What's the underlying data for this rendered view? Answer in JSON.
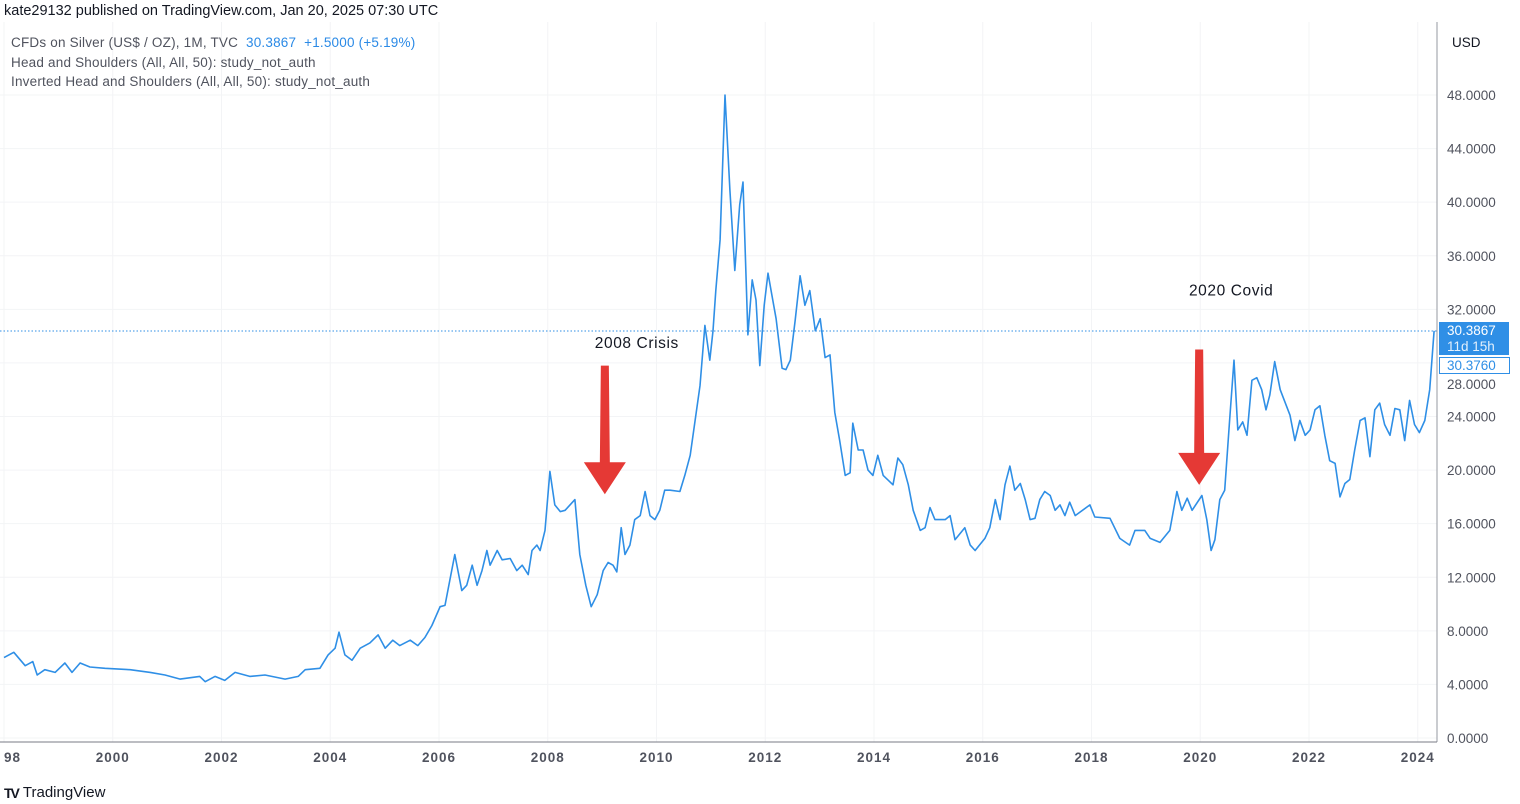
{
  "header": {
    "published": "kate29132 published on TradingView.com, Jan 20, 2025 07:30 UTC"
  },
  "legend": {
    "symbol": "CFDs on Silver (US$ / OZ), 1M, TVC",
    "last": "30.3867",
    "change": "+1.5000 (+5.19%)",
    "study1": "Head and Shoulders (All, All, 50): study_not_auth",
    "study2": "Inverted Head and Shoulders (All, All, 50): study_not_auth"
  },
  "footer": {
    "brand": "TradingView",
    "logo_mark": "TV"
  },
  "chart_data": {
    "type": "line",
    "currency": "USD",
    "line_color": "#2f8fe6",
    "ylim": [
      0,
      48
    ],
    "yticks": [
      "0.0000",
      "4.0000",
      "8.0000",
      "12.0000",
      "16.0000",
      "20.0000",
      "24.0000",
      "28.0000",
      "32.0000",
      "36.0000",
      "40.0000",
      "44.0000",
      "48.0000"
    ],
    "xticks": [
      "98",
      "2000",
      "2002",
      "2004",
      "2006",
      "2008",
      "2010",
      "2012",
      "2014",
      "2016",
      "2018",
      "2020",
      "2022",
      "2024"
    ],
    "grid": true,
    "last_price": {
      "value": 30.3867,
      "label": "30.3867",
      "countdown": "11d 15h",
      "prev_label": "30.3760",
      "color": "#2f8fe6"
    },
    "annotations": [
      {
        "text": "2008 Crisis",
        "year": 2009.05,
        "text_price": 29.5,
        "arrow_from": 27.8,
        "arrow_to": 18.2,
        "color": "#e53935"
      },
      {
        "text": "2020 Covid",
        "year": 2019.98,
        "text_price": 33.4,
        "arrow_from": 29.0,
        "arrow_to": 18.9,
        "color": "#e53935"
      }
    ],
    "series": [
      {
        "points": [
          [
            1998.0,
            6.0
          ],
          [
            1998.18,
            6.4
          ],
          [
            1998.39,
            5.4
          ],
          [
            1998.53,
            5.7
          ],
          [
            1998.61,
            4.7
          ],
          [
            1998.75,
            5.1
          ],
          [
            1998.94,
            4.9
          ],
          [
            1999.12,
            5.6
          ],
          [
            1999.25,
            4.9
          ],
          [
            1999.4,
            5.6
          ],
          [
            1999.58,
            5.3
          ],
          [
            1999.86,
            5.2
          ],
          [
            2000.32,
            5.1
          ],
          [
            2000.69,
            4.9
          ],
          [
            2000.96,
            4.7
          ],
          [
            2001.24,
            4.4
          ],
          [
            2001.6,
            4.6
          ],
          [
            2001.7,
            4.2
          ],
          [
            2001.88,
            4.6
          ],
          [
            2002.06,
            4.3
          ],
          [
            2002.25,
            4.9
          ],
          [
            2002.52,
            4.6
          ],
          [
            2002.8,
            4.7
          ],
          [
            2003.17,
            4.4
          ],
          [
            2003.41,
            4.6
          ],
          [
            2003.54,
            5.1
          ],
          [
            2003.81,
            5.2
          ],
          [
            2003.96,
            6.2
          ],
          [
            2004.09,
            6.7
          ],
          [
            2004.16,
            7.9
          ],
          [
            2004.27,
            6.2
          ],
          [
            2004.4,
            5.8
          ],
          [
            2004.55,
            6.7
          ],
          [
            2004.73,
            7.1
          ],
          [
            2004.88,
            7.7
          ],
          [
            2005.01,
            6.7
          ],
          [
            2005.15,
            7.3
          ],
          [
            2005.28,
            6.9
          ],
          [
            2005.47,
            7.3
          ],
          [
            2005.61,
            6.9
          ],
          [
            2005.74,
            7.5
          ],
          [
            2005.87,
            8.4
          ],
          [
            2006.02,
            9.8
          ],
          [
            2006.11,
            9.9
          ],
          [
            2006.2,
            11.8
          ],
          [
            2006.29,
            13.7
          ],
          [
            2006.42,
            11.0
          ],
          [
            2006.51,
            11.4
          ],
          [
            2006.61,
            12.9
          ],
          [
            2006.7,
            11.4
          ],
          [
            2006.79,
            12.5
          ],
          [
            2006.88,
            14.0
          ],
          [
            2006.94,
            12.9
          ],
          [
            2007.07,
            14.0
          ],
          [
            2007.16,
            13.3
          ],
          [
            2007.31,
            13.4
          ],
          [
            2007.43,
            12.5
          ],
          [
            2007.53,
            12.9
          ],
          [
            2007.64,
            12.2
          ],
          [
            2007.71,
            14.0
          ],
          [
            2007.8,
            14.4
          ],
          [
            2007.86,
            14.0
          ],
          [
            2007.95,
            15.5
          ],
          [
            2008.04,
            19.9
          ],
          [
            2008.13,
            17.4
          ],
          [
            2008.23,
            16.9
          ],
          [
            2008.32,
            17.0
          ],
          [
            2008.5,
            17.8
          ],
          [
            2008.59,
            13.7
          ],
          [
            2008.7,
            11.4
          ],
          [
            2008.8,
            9.8
          ],
          [
            2008.91,
            10.7
          ],
          [
            2009.02,
            12.5
          ],
          [
            2009.11,
            13.1
          ],
          [
            2009.2,
            12.9
          ],
          [
            2009.27,
            12.4
          ],
          [
            2009.35,
            15.7
          ],
          [
            2009.42,
            13.7
          ],
          [
            2009.51,
            14.4
          ],
          [
            2009.6,
            16.3
          ],
          [
            2009.7,
            16.6
          ],
          [
            2009.79,
            18.4
          ],
          [
            2009.88,
            16.6
          ],
          [
            2009.97,
            16.3
          ],
          [
            2010.06,
            17.0
          ],
          [
            2010.15,
            18.5
          ],
          [
            2010.25,
            18.5
          ],
          [
            2010.43,
            18.4
          ],
          [
            2010.52,
            19.6
          ],
          [
            2010.62,
            21.1
          ],
          [
            2010.71,
            23.7
          ],
          [
            2010.8,
            26.3
          ],
          [
            2010.89,
            30.8
          ],
          [
            2010.98,
            28.2
          ],
          [
            2011.04,
            30.4
          ],
          [
            2011.09,
            33.4
          ],
          [
            2011.17,
            37.2
          ],
          [
            2011.26,
            48.0
          ],
          [
            2011.35,
            40.9
          ],
          [
            2011.44,
            34.9
          ],
          [
            2011.53,
            39.8
          ],
          [
            2011.59,
            41.5
          ],
          [
            2011.68,
            30.1
          ],
          [
            2011.76,
            34.2
          ],
          [
            2011.83,
            32.7
          ],
          [
            2011.9,
            27.8
          ],
          [
            2011.98,
            32.3
          ],
          [
            2012.05,
            34.7
          ],
          [
            2012.12,
            33.1
          ],
          [
            2012.2,
            31.3
          ],
          [
            2012.31,
            27.6
          ],
          [
            2012.38,
            27.5
          ],
          [
            2012.46,
            28.2
          ],
          [
            2012.55,
            31.2
          ],
          [
            2012.64,
            34.5
          ],
          [
            2012.73,
            32.3
          ],
          [
            2012.82,
            33.4
          ],
          [
            2012.92,
            30.4
          ],
          [
            2013.01,
            31.3
          ],
          [
            2013.1,
            28.4
          ],
          [
            2013.19,
            28.6
          ],
          [
            2013.28,
            24.3
          ],
          [
            2013.37,
            22.2
          ],
          [
            2013.47,
            19.6
          ],
          [
            2013.56,
            19.8
          ],
          [
            2013.61,
            23.5
          ],
          [
            2013.71,
            21.5
          ],
          [
            2013.8,
            21.5
          ],
          [
            2013.89,
            20.0
          ],
          [
            2013.98,
            19.6
          ],
          [
            2014.07,
            21.1
          ],
          [
            2014.17,
            19.6
          ],
          [
            2014.35,
            18.9
          ],
          [
            2014.44,
            20.9
          ],
          [
            2014.53,
            20.4
          ],
          [
            2014.63,
            18.9
          ],
          [
            2014.72,
            17.0
          ],
          [
            2014.85,
            15.5
          ],
          [
            2014.94,
            15.7
          ],
          [
            2015.03,
            17.2
          ],
          [
            2015.12,
            16.3
          ],
          [
            2015.31,
            16.3
          ],
          [
            2015.4,
            16.6
          ],
          [
            2015.49,
            14.8
          ],
          [
            2015.67,
            15.7
          ],
          [
            2015.77,
            14.4
          ],
          [
            2015.86,
            14.0
          ],
          [
            2016.04,
            14.9
          ],
          [
            2016.13,
            15.7
          ],
          [
            2016.23,
            17.8
          ],
          [
            2016.32,
            16.3
          ],
          [
            2016.41,
            18.9
          ],
          [
            2016.5,
            20.3
          ],
          [
            2016.59,
            18.5
          ],
          [
            2016.69,
            19.0
          ],
          [
            2016.78,
            17.8
          ],
          [
            2016.87,
            16.3
          ],
          [
            2016.96,
            16.4
          ],
          [
            2017.05,
            17.8
          ],
          [
            2017.14,
            18.4
          ],
          [
            2017.24,
            18.1
          ],
          [
            2017.33,
            17.0
          ],
          [
            2017.42,
            17.4
          ],
          [
            2017.51,
            16.6
          ],
          [
            2017.6,
            17.6
          ],
          [
            2017.7,
            16.6
          ],
          [
            2017.97,
            17.4
          ],
          [
            2018.06,
            16.5
          ],
          [
            2018.34,
            16.4
          ],
          [
            2018.52,
            14.9
          ],
          [
            2018.7,
            14.4
          ],
          [
            2018.8,
            15.5
          ],
          [
            2018.98,
            15.5
          ],
          [
            2019.08,
            14.9
          ],
          [
            2019.26,
            14.6
          ],
          [
            2019.44,
            15.5
          ],
          [
            2019.57,
            18.4
          ],
          [
            2019.66,
            17.0
          ],
          [
            2019.76,
            17.9
          ],
          [
            2019.85,
            17.0
          ],
          [
            2020.03,
            18.1
          ],
          [
            2020.12,
            16.3
          ],
          [
            2020.2,
            14.0
          ],
          [
            2020.27,
            14.8
          ],
          [
            2020.36,
            17.8
          ],
          [
            2020.45,
            18.5
          ],
          [
            2020.54,
            23.7
          ],
          [
            2020.62,
            28.2
          ],
          [
            2020.69,
            23.0
          ],
          [
            2020.78,
            23.6
          ],
          [
            2020.86,
            22.6
          ],
          [
            2020.95,
            26.7
          ],
          [
            2021.04,
            26.9
          ],
          [
            2021.13,
            26.0
          ],
          [
            2021.21,
            24.5
          ],
          [
            2021.28,
            25.6
          ],
          [
            2021.37,
            28.1
          ],
          [
            2021.47,
            26.0
          ],
          [
            2021.65,
            24.1
          ],
          [
            2021.74,
            22.2
          ],
          [
            2021.83,
            23.7
          ],
          [
            2021.93,
            22.6
          ],
          [
            2022.02,
            23.0
          ],
          [
            2022.11,
            24.5
          ],
          [
            2022.2,
            24.8
          ],
          [
            2022.29,
            22.6
          ],
          [
            2022.38,
            20.7
          ],
          [
            2022.48,
            20.5
          ],
          [
            2022.57,
            18.0
          ],
          [
            2022.66,
            19.0
          ],
          [
            2022.75,
            19.3
          ],
          [
            2022.84,
            21.5
          ],
          [
            2022.94,
            23.7
          ],
          [
            2023.03,
            23.9
          ],
          [
            2023.12,
            21.0
          ],
          [
            2023.21,
            24.5
          ],
          [
            2023.3,
            25.0
          ],
          [
            2023.39,
            23.4
          ],
          [
            2023.49,
            22.6
          ],
          [
            2023.58,
            24.6
          ],
          [
            2023.67,
            24.5
          ],
          [
            2023.76,
            22.2
          ],
          [
            2023.85,
            25.2
          ],
          [
            2023.94,
            23.4
          ],
          [
            2024.03,
            22.8
          ],
          [
            2024.13,
            23.7
          ],
          [
            2024.22,
            26.0
          ],
          [
            2024.3,
            30.4
          ]
        ]
      }
    ]
  }
}
